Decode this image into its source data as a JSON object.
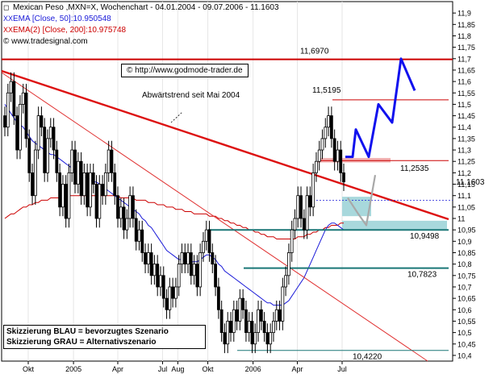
{
  "header": {
    "title": "Mexican Peso ,MXN=X, Wochenchart - 04.01.2004 - 09.07.2006 - 11.1603",
    "ema50_label": "EMA [Close, 50]:10.950548",
    "ema200_label": "EMA(2) [Close, 200]:10.975748",
    "source": "© www.tradesignal.com",
    "marker": "XX"
  },
  "url_label": "© http://www.godmode-trader.de",
  "annotation_trend": "Abwärtstrend seit Mai 2004",
  "legend": {
    "blue": "Skizzierung BLAU = bevorzugtes Szenario",
    "gray": "Skizzierung GRAU = Alternativszenario"
  },
  "colors": {
    "candle": "#000000",
    "ema50": "#1a1ad8",
    "ema200": "#cc0000",
    "trend": "#dd1111",
    "teal": "#1a7777",
    "blue_scenario": "#1111ee",
    "gray_scenario": "#a8a8a8",
    "zone": "#a8d8dc"
  },
  "chart_data": {
    "type": "candlestick",
    "ylim": [
      10.375,
      11.95
    ],
    "yticks": [
      10.4,
      10.45,
      10.5,
      10.55,
      10.6,
      10.65,
      10.7,
      10.75,
      10.8,
      10.85,
      10.9,
      10.95,
      11.0,
      11.05,
      11.1,
      11.15,
      11.2,
      11.25,
      11.3,
      11.35,
      11.4,
      11.45,
      11.5,
      11.55,
      11.6,
      11.65,
      11.7,
      11.75,
      11.8,
      11.85,
      11.9
    ],
    "ytick_labels": [
      "10,4",
      "10,45",
      "10,5",
      "10,55",
      "10,6",
      "10,65",
      "10,7",
      "10,75",
      "10,8",
      "10,85",
      "10,9",
      "10,95",
      "11",
      "11,05",
      "11,1",
      "11,15",
      "11,2",
      "11,25",
      "11,3",
      "11,35",
      "11,4",
      "11,45",
      "11,5",
      "11,55",
      "11,6",
      "11,65",
      "11,7",
      "11,75",
      "11,8",
      "11,85",
      "11,9"
    ],
    "xticks": [
      {
        "label": "Okt",
        "date": "2004-10-01"
      },
      {
        "label": "2005",
        "date": "2005-01-01"
      },
      {
        "label": "Apr",
        "date": "2005-04-01"
      },
      {
        "label": "Jul",
        "date": "2005-07-01"
      },
      {
        "label": "Aug",
        "date": "2005-08-01"
      },
      {
        "label": "Okt",
        "date": "2005-10-01"
      },
      {
        "label": "2006",
        "date": "2006-01-01"
      },
      {
        "label": "Apr",
        "date": "2006-04-01"
      },
      {
        "label": "Jul",
        "date": "2006-07-01"
      }
    ],
    "last_price": 11.1603,
    "last_price_label": "11.1603",
    "closes": [
      11.4,
      11.55,
      11.6,
      11.45,
      11.3,
      11.5,
      11.55,
      11.35,
      11.2,
      11.1,
      11.3,
      11.45,
      11.4,
      11.2,
      11.35,
      11.4,
      11.3,
      11.2,
      11.05,
      11.15,
      11.0,
      11.2,
      11.3,
      11.15,
      11.25,
      11.1,
      11.2,
      11.05,
      11.2,
      11.15,
      11.0,
      11.15,
      11.1,
      11.2,
      11.3,
      11.2,
      11.1,
      11.0,
      11.05,
      10.95,
      11.0,
      11.1,
      11.0,
      10.9,
      10.95,
      10.85,
      10.8,
      10.85,
      10.75,
      10.8,
      10.7,
      10.75,
      10.65,
      10.6,
      10.7,
      10.65,
      10.7,
      10.8,
      10.85,
      10.8,
      10.85,
      10.75,
      10.8,
      10.7,
      10.85,
      10.9,
      10.95,
      10.85,
      10.8,
      10.7,
      10.6,
      10.5,
      10.45,
      10.55,
      10.5,
      10.6,
      10.55,
      10.65,
      10.6,
      10.5,
      10.55,
      10.45,
      10.5,
      10.6,
      10.55,
      10.5,
      10.45,
      10.5,
      10.55,
      10.6,
      10.55,
      10.7,
      10.75,
      10.85,
      10.95,
      11.0,
      11.1,
      11.0,
      10.95,
      11.1,
      11.05,
      11.2,
      11.25,
      11.3,
      11.35,
      11.4,
      11.45,
      11.35,
      11.25,
      11.3,
      11.2,
      11.16
    ],
    "ema50": [
      11.5,
      11.48,
      11.46,
      11.44,
      11.42,
      11.41,
      11.4,
      11.38,
      11.36,
      11.34,
      11.33,
      11.32,
      11.31,
      11.3,
      11.29,
      11.28,
      11.28,
      11.27,
      11.26,
      11.25,
      11.24,
      11.23,
      11.22,
      11.21,
      11.2,
      11.19,
      11.18,
      11.18,
      11.17,
      11.16,
      11.16,
      11.15,
      11.14,
      11.13,
      11.12,
      11.11,
      11.1,
      11.09,
      11.08,
      11.07,
      11.06,
      11.05,
      11.04,
      11.03,
      11.02,
      11.0,
      10.99,
      10.97,
      10.96,
      10.94,
      10.92,
      10.9,
      10.88,
      10.86,
      10.85,
      10.84,
      10.83,
      10.82,
      10.82,
      10.81,
      10.81,
      10.81,
      10.81,
      10.81,
      10.82,
      10.83,
      10.84,
      10.84,
      10.83,
      10.82,
      10.8,
      10.79,
      10.77,
      10.76,
      10.75,
      10.74,
      10.73,
      10.72,
      10.71,
      10.7,
      10.69,
      10.68,
      10.67,
      10.66,
      10.65,
      10.64,
      10.63,
      10.63,
      10.62,
      10.62,
      10.62,
      10.62,
      10.63,
      10.64,
      10.66,
      10.68,
      10.7,
      10.72,
      10.74,
      10.77,
      10.8,
      10.83,
      10.86,
      10.89,
      10.92,
      10.95,
      10.97,
      10.98,
      10.98,
      10.97,
      10.96,
      10.95
    ],
    "ema200": [
      11.0,
      11.01,
      11.02,
      11.02,
      11.03,
      11.04,
      11.05,
      11.05,
      11.06,
      11.06,
      11.07,
      11.07,
      11.08,
      11.08,
      11.08,
      11.09,
      11.09,
      11.09,
      11.09,
      11.09,
      11.09,
      11.1,
      11.1,
      11.1,
      11.1,
      11.1,
      11.1,
      11.1,
      11.1,
      11.1,
      11.1,
      11.1,
      11.1,
      11.1,
      11.1,
      11.1,
      11.1,
      11.1,
      11.09,
      11.09,
      11.09,
      11.09,
      11.09,
      11.08,
      11.08,
      11.08,
      11.08,
      11.07,
      11.07,
      11.07,
      11.06,
      11.06,
      11.06,
      11.05,
      11.05,
      11.05,
      11.04,
      11.04,
      11.04,
      11.03,
      11.03,
      11.03,
      11.02,
      11.02,
      11.02,
      11.02,
      11.02,
      11.01,
      11.01,
      11.01,
      11.0,
      11.0,
      10.99,
      10.99,
      10.98,
      10.98,
      10.97,
      10.97,
      10.96,
      10.96,
      10.95,
      10.95,
      10.94,
      10.94,
      10.93,
      10.93,
      10.92,
      10.92,
      10.92,
      10.91,
      10.91,
      10.91,
      10.91,
      10.91,
      10.91,
      10.91,
      10.92,
      10.92,
      10.92,
      10.93,
      10.93,
      10.94,
      10.94,
      10.95,
      10.95,
      10.96,
      10.96,
      10.97,
      10.97,
      10.97,
      10.98,
      10.98
    ],
    "levels": [
      {
        "value": 11.697,
        "label": "11,6970",
        "color": "#cc0000"
      },
      {
        "value": 11.5195,
        "label": "11,5195",
        "color": "#cc0000"
      },
      {
        "value": 11.2535,
        "label": "11,2535",
        "color": "#cc0000"
      },
      {
        "value": 10.9498,
        "label": "10,9498",
        "color": "#1a7777"
      },
      {
        "value": 10.7823,
        "label": "10,7823",
        "color": "#1a7777"
      },
      {
        "value": 10.422,
        "label": "10,4220",
        "color": "#1a7777"
      }
    ],
    "blue_scenario": [
      [
        0,
        11.27
      ],
      [
        1,
        11.27
      ],
      [
        2,
        11.39
      ],
      [
        3,
        11.27
      ],
      [
        4,
        11.5
      ],
      [
        5,
        11.42
      ],
      [
        6,
        11.7
      ],
      [
        7,
        11.56
      ]
    ],
    "gray_scenario": [
      [
        0,
        11.09
      ],
      [
        1,
        11.02
      ],
      [
        2,
        10.97
      ],
      [
        3,
        11.19
      ]
    ]
  }
}
